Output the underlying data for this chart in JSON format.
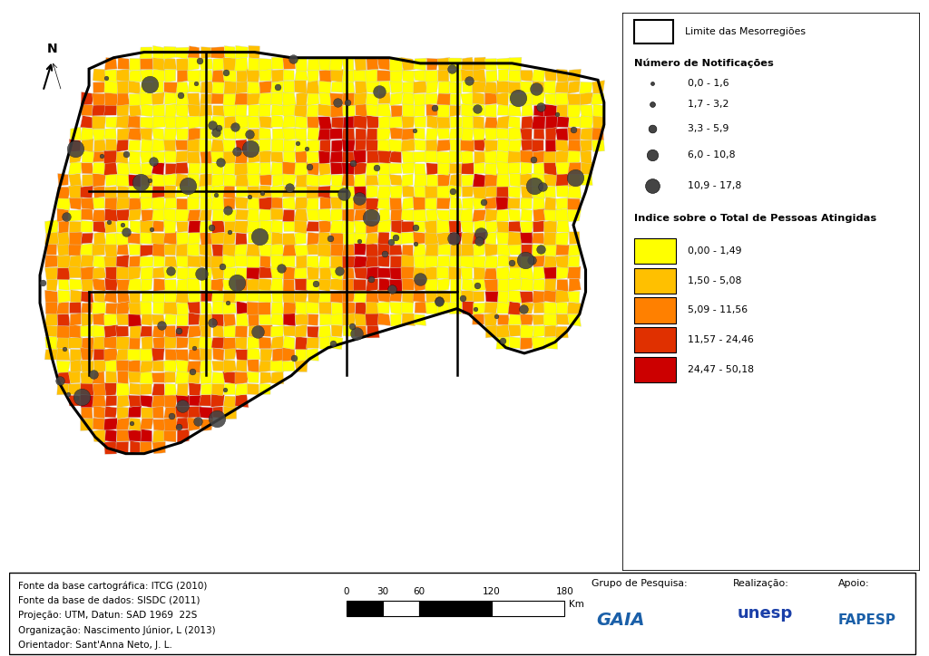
{
  "background_color": "#ffffff",
  "legend": {
    "title_notificacoes": "Número de Notificações",
    "notificacoes_items": [
      {
        "label": "0,0 - 1,6"
      },
      {
        "label": "1,7 - 3,2"
      },
      {
        "label": "3,3 - 5,9"
      },
      {
        "label": "6,0 - 10,8"
      },
      {
        "label": "10,9 - 17,8"
      }
    ],
    "dot_color": "#444444",
    "title_indice": "Indice sobre o Total de Pessoas Atingidas",
    "indice_items": [
      {
        "label": "0,00 - 1,49",
        "color": "#ffff00"
      },
      {
        "label": "1,50 - 5,08",
        "color": "#ffc000"
      },
      {
        "label": "5,09 - 11,56",
        "color": "#ff8000"
      },
      {
        "label": "11,57 - 24,46",
        "color": "#e03000"
      },
      {
        "label": "24,47 - 50,18",
        "color": "#cc0000"
      }
    ]
  },
  "limite_label": "Limite das Mesorregiões",
  "fonte_lines": [
    "Fonte da base cartográfica: ITCG (2010)",
    "Fonte da base de dados: SISDC (2011)",
    "Projeção: UTM, Datun: SAD 1969  22S",
    "Organização: Nascimento Júnior, L (2013)",
    "Orientador: Sant'Anna Neto, J. L."
  ],
  "map_colors": {
    "yellow": "#ffff00",
    "lt_orange": "#ffc000",
    "orange": "#ff8000",
    "red_orange": "#e03000",
    "red": "#cc0000",
    "muni_edge": "#cccccc",
    "meso_edge": "#000000",
    "dot": "#444444"
  }
}
